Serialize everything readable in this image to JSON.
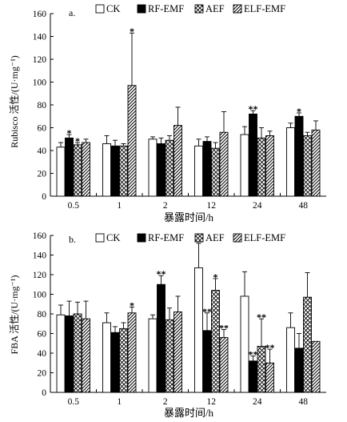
{
  "legend": {
    "labels": [
      "CK",
      "RF-EMF",
      "AEF",
      "ELF-EMF"
    ],
    "patterns": [
      "empty",
      "solid",
      "crosshatch",
      "diagonal"
    ]
  },
  "chart_data": [
    {
      "type": "bar",
      "panel_label": "a.",
      "ylabel": "Rubisco 活性/(U·mg⁻¹)",
      "xlabel": "暴露时间/h",
      "categories": [
        "0.5",
        "1",
        "2",
        "12",
        "24",
        "48"
      ],
      "ylim": [
        0,
        160
      ],
      "yticks": [
        0,
        20,
        40,
        60,
        80,
        100,
        120,
        140,
        160
      ],
      "series": [
        {
          "name": "CK",
          "values": [
            43,
            46,
            50,
            44,
            54,
            60
          ],
          "errors": [
            4,
            7,
            2,
            6,
            7,
            4
          ],
          "marks": [
            "",
            "",
            "",
            "",
            "",
            ""
          ]
        },
        {
          "name": "RF-EMF",
          "values": [
            51,
            44,
            46,
            48,
            72,
            70
          ],
          "errors": [
            3,
            5,
            5,
            4,
            3,
            3
          ],
          "marks": [
            "*",
            "",
            "",
            "",
            "**",
            "*"
          ]
        },
        {
          "name": "AEF",
          "values": [
            45,
            44,
            49,
            42,
            51,
            53
          ],
          "errors": [
            2,
            2,
            4,
            5,
            9,
            3
          ],
          "marks": [
            "*",
            "",
            "",
            "",
            "",
            ""
          ]
        },
        {
          "name": "ELF-EMF",
          "values": [
            47,
            97,
            62,
            56,
            53,
            58
          ],
          "errors": [
            3,
            46,
            16,
            18,
            4,
            8
          ],
          "marks": [
            "",
            "*",
            "",
            "",
            "",
            ""
          ]
        }
      ]
    },
    {
      "type": "bar",
      "panel_label": "b.",
      "ylabel": "FBA 活性/(U·mg⁻¹)",
      "xlabel": "暴露时间/h",
      "categories": [
        "0.5",
        "1",
        "2",
        "12",
        "24",
        "48"
      ],
      "ylim": [
        0,
        160
      ],
      "yticks": [
        0,
        20,
        40,
        60,
        80,
        100,
        120,
        140,
        160
      ],
      "series": [
        {
          "name": "CK",
          "values": [
            79,
            71,
            75,
            127,
            98,
            66
          ],
          "errors": [
            10,
            10,
            4,
            25,
            25,
            15
          ],
          "marks": [
            "",
            "",
            "",
            "",
            "",
            ""
          ]
        },
        {
          "name": "RF-EMF",
          "values": [
            78,
            61,
            110,
            63,
            32,
            45
          ],
          "errors": [
            15,
            6,
            9,
            18,
            5,
            15
          ],
          "marks": [
            "",
            "",
            "**",
            "**",
            "**",
            ""
          ]
        },
        {
          "name": "AEF",
          "values": [
            80,
            65,
            74,
            104,
            47,
            97
          ],
          "errors": [
            12,
            6,
            12,
            12,
            28,
            25
          ],
          "marks": [
            "",
            "",
            "",
            "*",
            "**",
            ""
          ]
        },
        {
          "name": "ELF-EMF",
          "values": [
            75,
            81,
            82,
            56,
            30,
            52
          ],
          "errors": [
            18,
            6,
            16,
            8,
            14,
            0
          ],
          "marks": [
            "",
            "*",
            "",
            "**",
            "**",
            ""
          ]
        }
      ]
    }
  ]
}
